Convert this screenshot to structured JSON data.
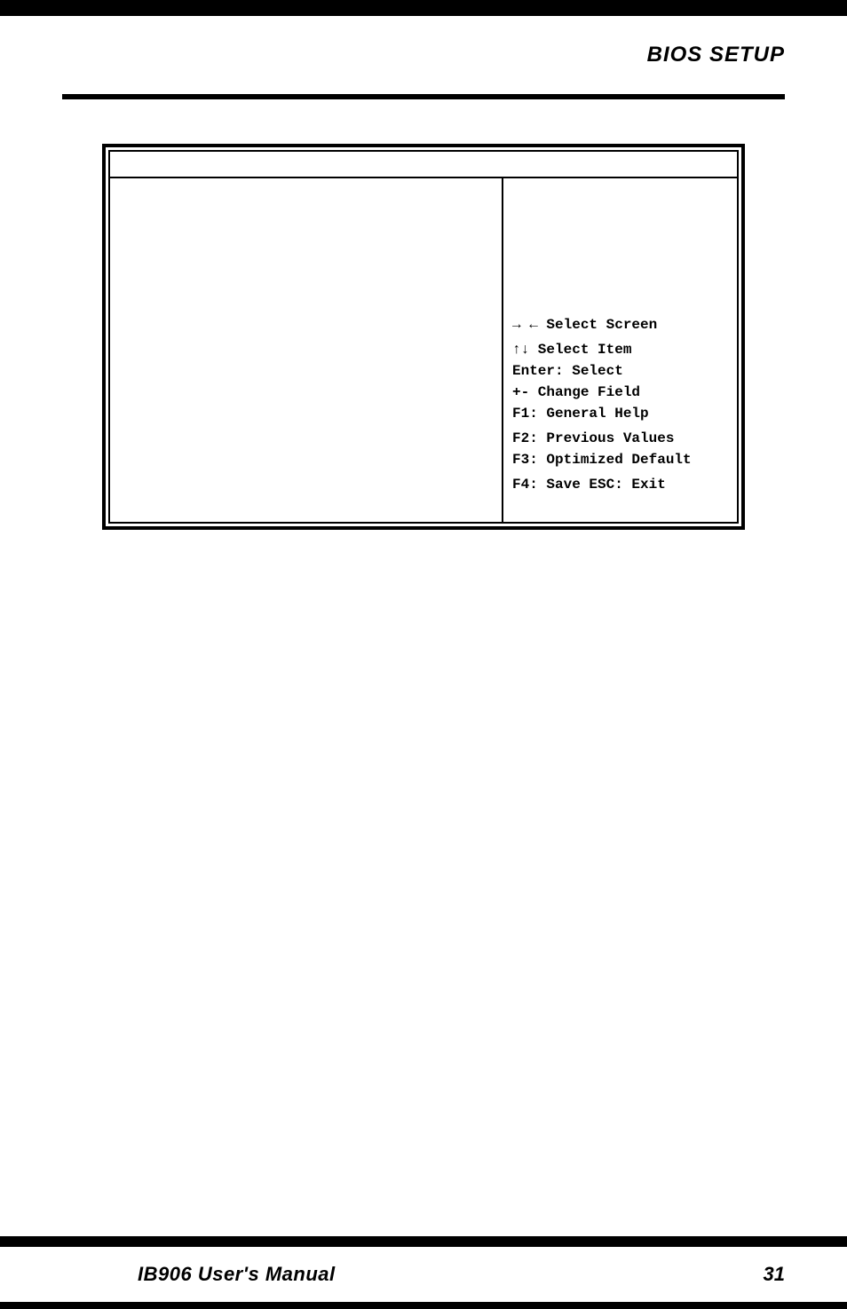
{
  "header": {
    "title": "BIOS SETUP"
  },
  "bios_panel": {
    "help": {
      "select_screen": "→ ←   Select Screen",
      "select_item": "↑↓ Select Item",
      "enter": "Enter: Select",
      "change_field": "+-  Change Field",
      "general_help": "F1: General Help",
      "previous_values": "F2: Previous Values",
      "optimized_default": "F3: Optimized Default",
      "save_exit": "F4: Save  ESC: Exit"
    }
  },
  "footer": {
    "title": "IB906 User's Manual",
    "page": "31"
  },
  "colors": {
    "text": "#000000",
    "background": "#ffffff",
    "border": "#000000"
  }
}
